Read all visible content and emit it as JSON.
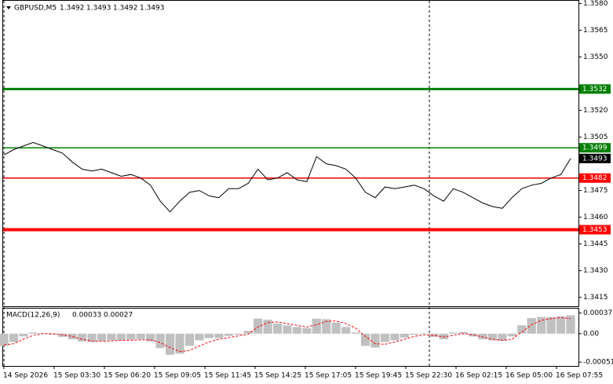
{
  "chart_data": [
    {
      "type": "line",
      "symbol": "GBPUSD,M5",
      "ohlc": [
        1.3492,
        1.3493,
        1.3492,
        1.3493
      ],
      "color": "#000000",
      "values": [
        1.3495,
        1.3498,
        1.35,
        1.3502,
        1.35,
        1.3498,
        1.3496,
        1.3491,
        1.3487,
        1.3486,
        1.3487,
        1.3485,
        1.3483,
        1.3484,
        1.3482,
        1.3478,
        1.3469,
        1.3463,
        1.3469,
        1.3474,
        1.3475,
        1.3472,
        1.3471,
        1.3476,
        1.3476,
        1.3479,
        1.3487,
        1.3481,
        1.3482,
        1.3485,
        1.3481,
        1.348,
        1.3494,
        1.349,
        1.3489,
        1.3487,
        1.3482,
        1.3474,
        1.3471,
        1.3477,
        1.3476,
        1.3477,
        1.3478,
        1.3476,
        1.3472,
        1.3469,
        1.3476,
        1.3474,
        1.3471,
        1.3468,
        1.3466,
        1.3465,
        1.3471,
        1.3476,
        1.3478,
        1.3479,
        1.3482,
        1.3484,
        1.3493
      ],
      "ylim": [
        1.341,
        1.3582
      ],
      "yticks": [
        {
          "value": 1.358,
          "label": "1.3580"
        },
        1.3565,
        {
          "value": 1.355,
          "label": "1.3550"
        },
        {
          "value": 1.352,
          "label": "1.3520"
        },
        1.3505,
        1.3475,
        {
          "value": 1.346,
          "label": "1.3460"
        },
        1.3445,
        {
          "value": 1.343,
          "label": "1.3430"
        },
        1.3415
      ],
      "levels": [
        {
          "value": 1.3532,
          "color": "#008000"
        },
        {
          "value": 1.3499,
          "color": "#008000"
        },
        {
          "value": 1.3482,
          "color": "#ff0000"
        },
        {
          "value": 1.3453,
          "color": "#ff0000"
        }
      ],
      "time_labels": [
        "14 Sep 2026",
        "15 Sep 03:30",
        "15 Sep 06:20",
        "15 Sep 09:05",
        "15 Sep 11:45",
        "15 Sep 14:25",
        "15 Sep 17:05",
        "15 Sep 19:45",
        "15 Sep 22:30",
        "16 Sep 02:15",
        "16 Sep 05:00",
        "16 Sep 07:55"
      ]
    },
    {
      "type": "macd",
      "title": "MACD(12,26,9)",
      "series": [
        {
          "color": "#c0c0c0",
          "values": [
            -0.00022,
            -0.00015,
            -5e-05,
            2e-05,
            1e-05,
            -2e-05,
            -6e-05,
            -0.0001,
            -0.00014,
            -0.00015,
            -0.00013,
            -0.00012,
            -0.00012,
            -0.00011,
            -0.0001,
            -0.00014,
            -0.00026,
            -0.00038,
            -0.00036,
            -0.00022,
            -0.00012,
            -8e-05,
            -8e-05,
            -4e-05,
            -2e-05,
            5e-05,
            0.00027,
            0.00025,
            0.00018,
            0.00015,
            0.00012,
            0.0001,
            0.00027,
            0.00026,
            0.0002,
            0.00012,
            2e-05,
            -0.00022,
            -0.00025,
            -0.00015,
            -0.00012,
            -7e-05,
            -2e-05,
            1e-05,
            -6e-05,
            -0.0001,
            2e-05,
            3e-05,
            -5e-05,
            -0.0001,
            -0.00012,
            -0.00013,
            -5e-05,
            0.00015,
            0.00028,
            0.0003,
            0.0003,
            0.00031,
            0.00033
          ]
        },
        {
          "color": "#ff0000",
          "values": [
            -0.0002,
            -0.00018,
            -0.0001,
            -3e-05,
            0,
            0,
            -2e-05,
            -5e-05,
            -0.0001,
            -0.00013,
            -0.00014,
            -0.00013,
            -0.00012,
            -0.00012,
            -0.00011,
            -0.00011,
            -0.00016,
            -0.00025,
            -0.00032,
            -0.0003,
            -0.00022,
            -0.00015,
            -0.0001,
            -7e-05,
            -4e-05,
            -1e-05,
            0.00012,
            0.0002,
            0.00021,
            0.00018,
            0.00015,
            0.00012,
            0.00016,
            0.00022,
            0.00023,
            0.00018,
            0.0001,
            -5e-05,
            -0.00018,
            -0.00019,
            -0.00015,
            -0.0001,
            -5e-05,
            -2e-05,
            -3e-05,
            -6e-05,
            -3e-05,
            0,
            -2e-05,
            -6e-05,
            -0.0001,
            -0.00012,
            -0.0001,
            3e-05,
            0.00016,
            0.00024,
            0.00027,
            0.00029,
            0.00027
          ]
        }
      ],
      "ylim": [
        -0.00058,
        0.00045
      ],
      "yticks": [
        0.00037,
        {
          "value": 0,
          "label": "0.00"
        },
        -0.00051
      ]
    }
  ]
}
